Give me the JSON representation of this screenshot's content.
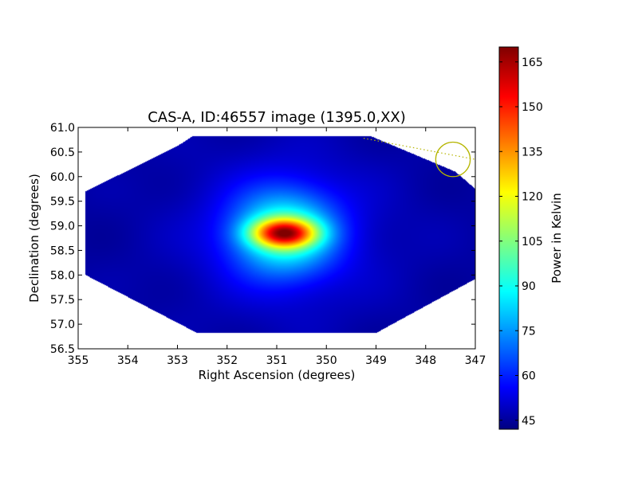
{
  "chart_data": {
    "type": "heatmap",
    "title": "CAS-A, ID:46557 image (1395.0,XX)",
    "xlabel": "Right Ascension (degrees)",
    "ylabel": "Declination (degrees)",
    "xlim": [
      355,
      347
    ],
    "ylim": [
      56.5,
      61.0
    ],
    "x_ticks": [
      355,
      354,
      353,
      352,
      351,
      350,
      349,
      348,
      347
    ],
    "y_ticks": [
      56.5,
      57.0,
      57.5,
      58.0,
      58.5,
      59.0,
      59.5,
      60.0,
      60.5,
      61.0
    ],
    "x_tick_labels": [
      "355",
      "354",
      "353",
      "352",
      "351",
      "350",
      "349",
      "348",
      "347"
    ],
    "y_tick_labels": [
      "56.5",
      "57.0",
      "57.5",
      "58.0",
      "58.5",
      "59.0",
      "59.5",
      "60.0",
      "60.5",
      "61.0"
    ],
    "colormap": "jet",
    "grid": false,
    "colorbar": {
      "label": "Power in Kelvin",
      "range": [
        42,
        170
      ],
      "ticks": [
        45,
        60,
        75,
        90,
        105,
        120,
        135,
        150,
        165
      ],
      "tick_labels": [
        "45",
        "60",
        "75",
        "90",
        "105",
        "120",
        "135",
        "150",
        "165"
      ]
    },
    "background_level": 46,
    "source": {
      "ra": 350.85,
      "dec": 58.85,
      "peak": 170
    },
    "footprint_polygon": [
      [
        354.85,
        58.0
      ],
      [
        354.85,
        59.7
      ],
      [
        353.0,
        60.62
      ],
      [
        352.7,
        60.82
      ],
      [
        349.1,
        60.82
      ],
      [
        347.4,
        60.1
      ],
      [
        347.0,
        59.75
      ],
      [
        347.0,
        57.92
      ],
      [
        349.0,
        56.82
      ],
      [
        352.6,
        56.82
      ]
    ],
    "beam_circle": {
      "ra": 347.45,
      "dec": 60.35,
      "radius_deg": 0.35,
      "color": "#b5b500"
    },
    "beam_line": [
      [
        349.25,
        60.78
      ],
      [
        347.0,
        60.35
      ]
    ]
  }
}
